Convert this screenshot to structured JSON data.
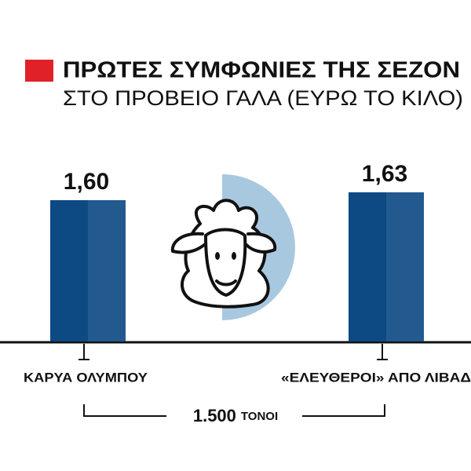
{
  "chart_data": {
    "type": "bar",
    "title": "ΠΡΩΤΕΣ ΣΥΜΦΩΝΙΕΣ ΤΗΣ ΣΕΖΟΝ",
    "subtitle": "ΣΤΟ ΠΡΟΒΕΙΟ ΓΑΛΑ (ΕΥΡΩ ΤΟ ΚΙΛΟ)",
    "categories": [
      "ΚΑΡΥΑ ΟΛΥΜΠΟΥ",
      "«ΕΛΕΥΘΕΡΟΙ» ΑΠΟ ΛΙΒΑΔ"
    ],
    "values": [
      1.6,
      1.63
    ],
    "value_labels": [
      "1,60",
      "1,63"
    ],
    "color": "#0d4a84",
    "ylim": [
      1.06,
      1.66
    ],
    "annotation": {
      "amount": "1.500",
      "unit": "ΤΟΝΟΙ"
    }
  }
}
